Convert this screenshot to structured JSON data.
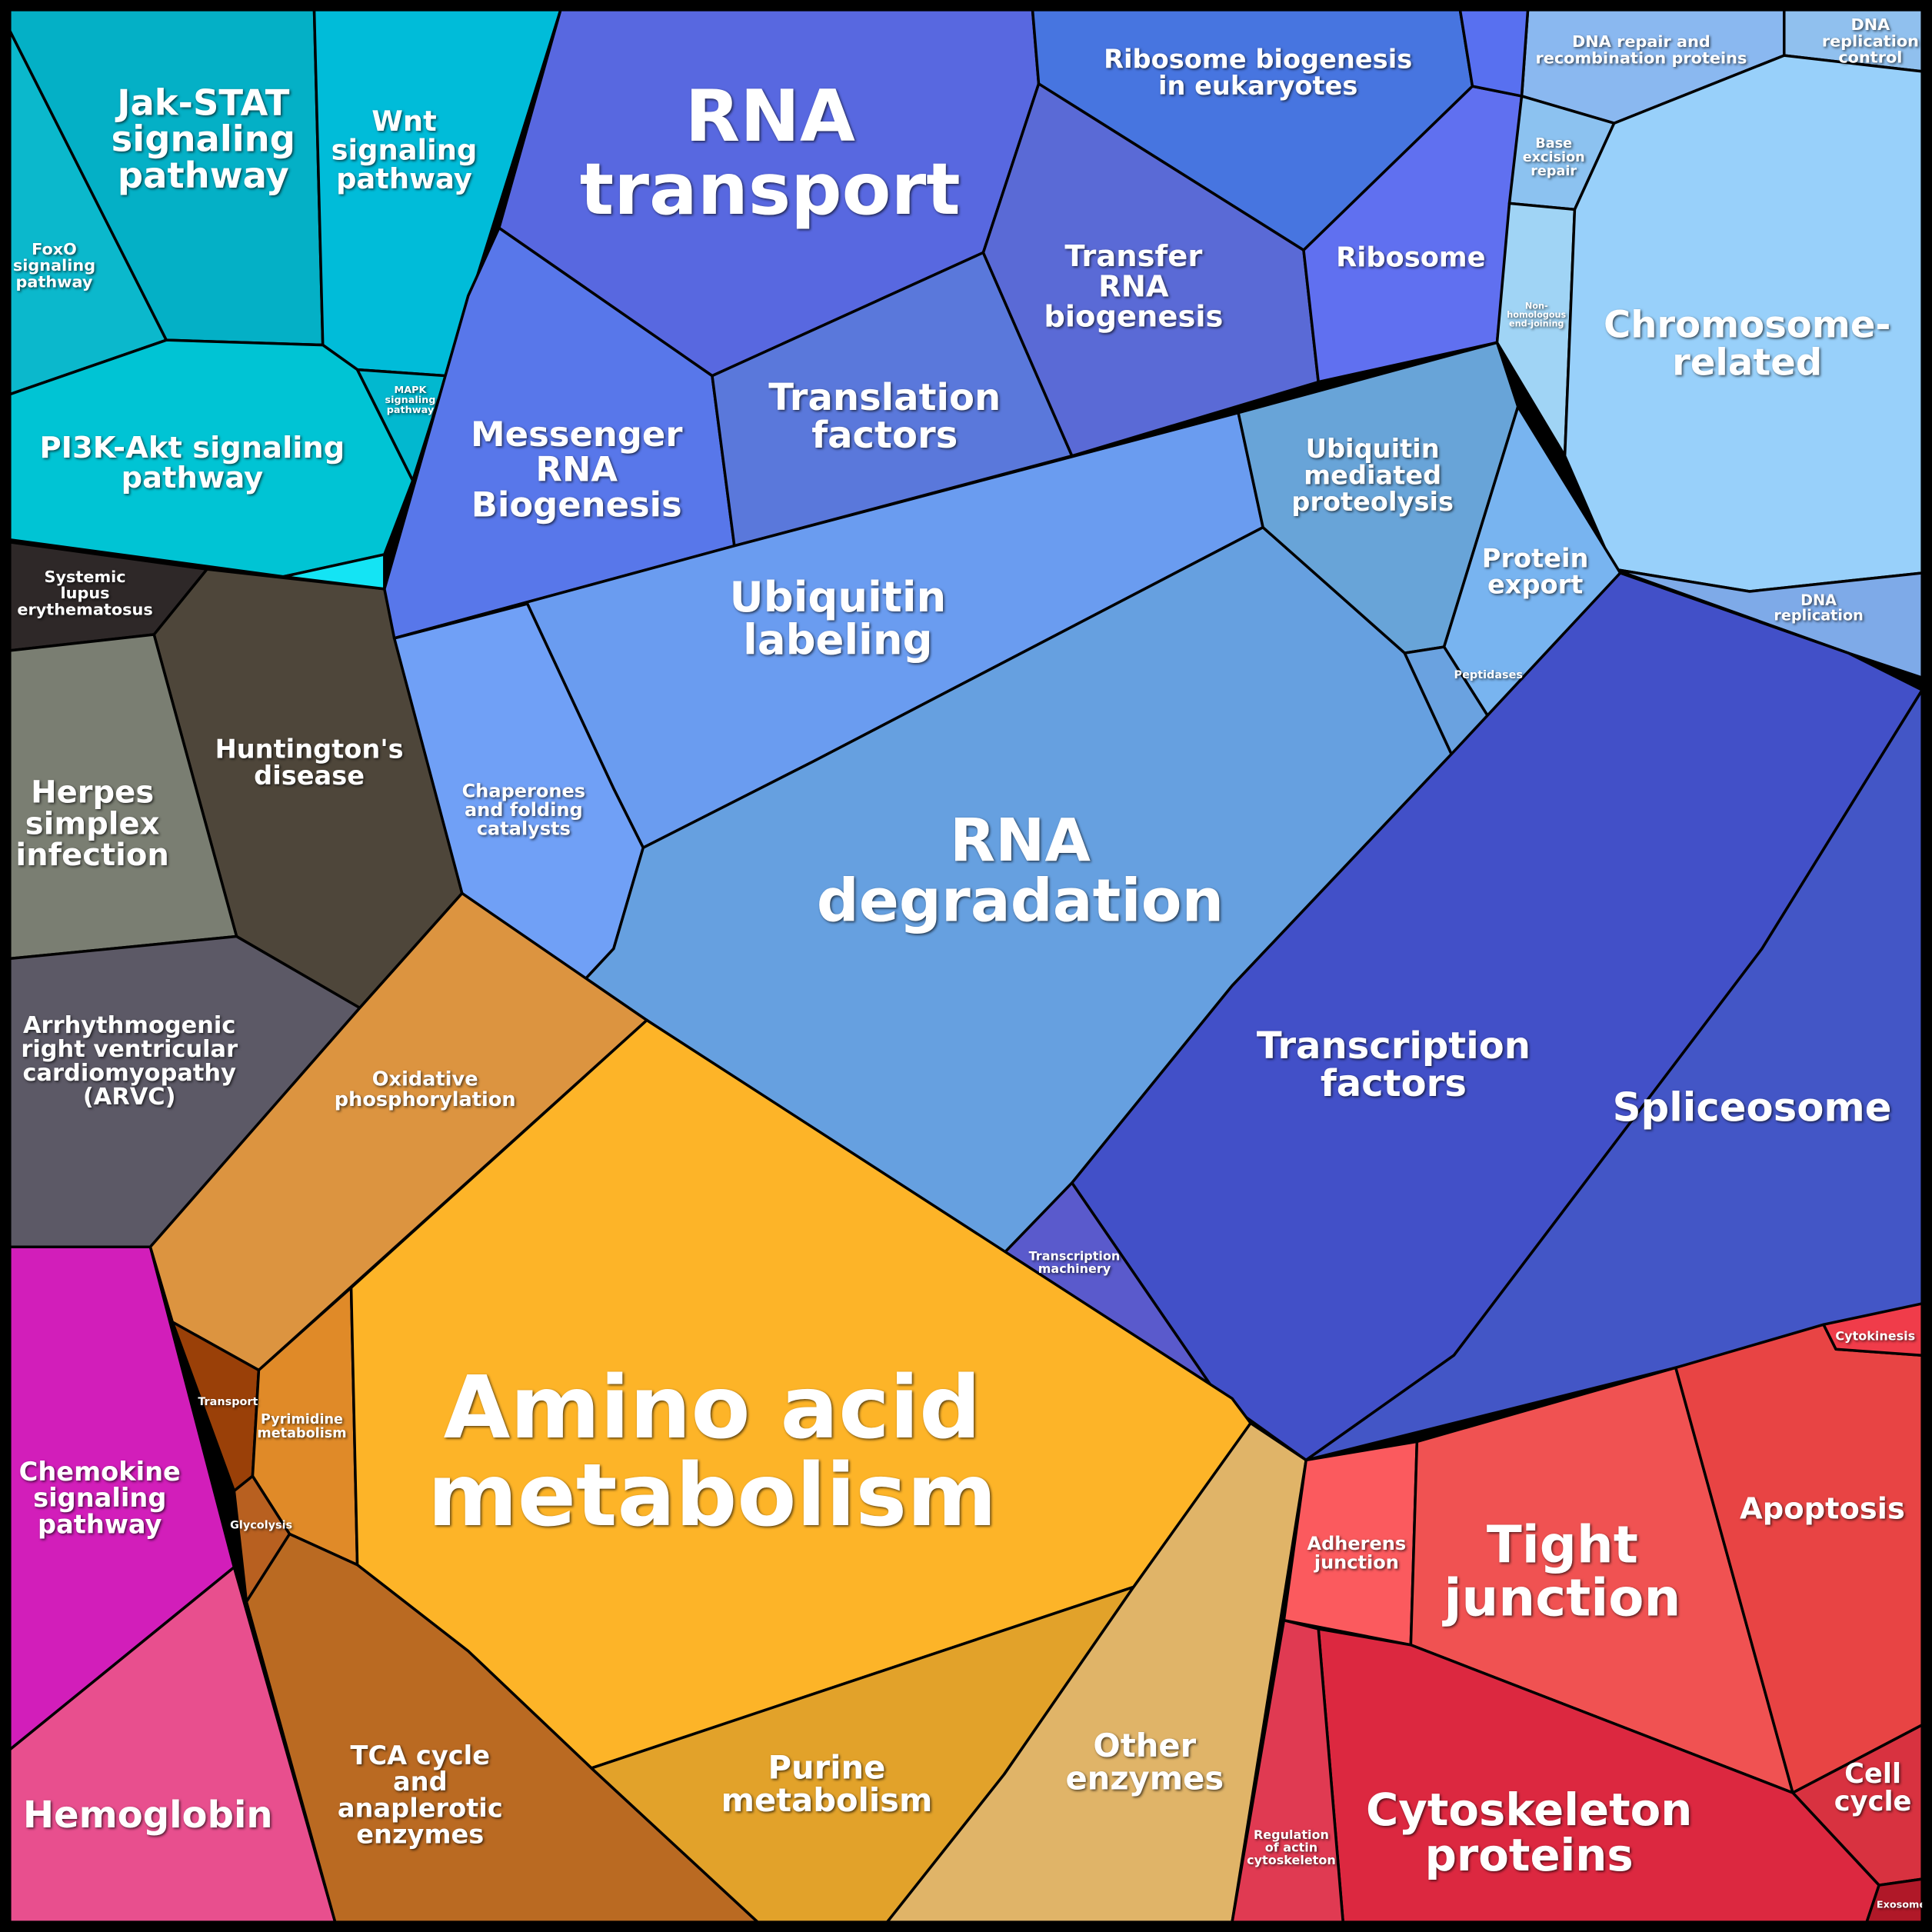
{
  "regions": [
    {
      "lines": [
        "FoxO",
        "signaling",
        "pathway"
      ],
      "color": "#0bb8cc"
    },
    {
      "lines": [
        "Jak-STAT",
        "signaling",
        "pathway"
      ],
      "color": "#04b0c6"
    },
    {
      "lines": [
        "Wnt",
        "signaling",
        "pathway"
      ],
      "color": "#00bcd9"
    },
    {
      "lines": [
        "PI3K-Akt signaling",
        "pathway"
      ],
      "color": "#00c4d4"
    },
    {
      "lines": [
        "MAPK",
        "signaling",
        "pathway"
      ],
      "color": "#02b8cf"
    },
    {
      "lines": [
        "Systemic",
        "lupus",
        "erythematosus"
      ],
      "color": "#2e2828"
    },
    {
      "lines": [
        "Huntington's",
        "disease"
      ],
      "color": "#4e463a"
    },
    {
      "lines": [
        "Herpes",
        "simplex",
        "infection"
      ],
      "color": "#7a7e72"
    },
    {
      "lines": [
        "Arrhythmogenic",
        "right ventricular",
        "cardiomyopathy",
        "(ARVC)"
      ],
      "color": "#5c5966"
    },
    {
      "lines": [
        "Chemokine",
        "signaling",
        "pathway"
      ],
      "color": "#d21eba"
    },
    {
      "lines": [
        "Hemoglobin"
      ],
      "color": "#e84f8e"
    },
    {
      "lines": [
        "RNA",
        "transport"
      ],
      "color": "#5868e0"
    },
    {
      "lines": [
        "Messenger",
        "RNA",
        "Biogenesis"
      ],
      "color": "#5877ea"
    },
    {
      "lines": [
        "Translation",
        "factors"
      ],
      "color": "#5a78db"
    },
    {
      "lines": [
        "Ribosome biogenesis",
        "in eukaryotes"
      ],
      "color": "#4775e0"
    },
    {
      "lines": [
        "Transfer",
        "RNA",
        "biogenesis"
      ],
      "color": "#5a6ad6"
    },
    {
      "lines": [
        "Ribosome"
      ],
      "color": "#6070f0"
    },
    {
      "lines": [
        "DNA repair and",
        "recombination proteins"
      ],
      "color": "#8ab8f0"
    },
    {
      "lines": [
        "DNA",
        "replication",
        "control"
      ],
      "color": "#90c0ee"
    },
    {
      "lines": [
        "Base",
        "excision",
        "repair"
      ],
      "color": "#8cc2f0"
    },
    {
      "lines": [
        "Non-",
        "homologous",
        "end-joining"
      ],
      "color": "#a0d4f5"
    },
    {
      "lines": [
        "Chromosome-",
        "related"
      ],
      "color": "#98d0fa"
    },
    {
      "lines": [
        "DNA",
        "replication"
      ],
      "color": "#7eaae8"
    },
    {
      "lines": [
        "Ubiquitin",
        "labeling"
      ],
      "color": "#6a9cf0"
    },
    {
      "lines": [
        "Chaperones",
        "and folding",
        "catalysts"
      ],
      "color": "#70a0f6"
    },
    {
      "lines": [
        "RNA",
        "degradation"
      ],
      "color": "#66a0e0"
    },
    {
      "lines": [
        "Ubiquitin",
        "mediated",
        "proteolysis"
      ],
      "color": "#68a4d8"
    },
    {
      "lines": [
        "Protein",
        "export"
      ],
      "color": "#78b4f0"
    },
    {
      "lines": [
        "Peptidases"
      ],
      "color": "#6aa2e0"
    },
    {
      "lines": [
        "Transcription",
        "factors"
      ],
      "color": "#4250c8"
    },
    {
      "lines": [
        "Spliceosome"
      ],
      "color": "#4356c6"
    },
    {
      "lines": [
        "Transcription",
        "machinery"
      ],
      "color": "#5a5acc"
    },
    {
      "lines": [
        "Oxidative",
        "phosphorylation"
      ],
      "color": "#dc9440"
    },
    {
      "lines": [
        "Transport"
      ],
      "color": "#9a4008"
    },
    {
      "lines": [
        "Pyrimidine",
        "metabolism"
      ],
      "color": "#e08a28"
    },
    {
      "lines": [
        "Glycolysis"
      ],
      "color": "#b86020"
    },
    {
      "lines": [
        "Amino acid",
        "metabolism"
      ],
      "color": "#fdb428"
    },
    {
      "lines": [
        "TCA cycle",
        "and",
        "anaplerotic",
        "enzymes"
      ],
      "color": "#ba6a22"
    },
    {
      "lines": [
        "Purine",
        "metabolism"
      ],
      "color": "#e2a22a"
    },
    {
      "lines": [
        "Other",
        "enzymes"
      ],
      "color": "#e0b468"
    },
    {
      "lines": [
        "Adherens",
        "junction"
      ],
      "color": "#fb5a5e"
    },
    {
      "lines": [
        "Tight",
        "junction"
      ],
      "color": "#f05252"
    },
    {
      "lines": [
        "Apoptosis"
      ],
      "color": "#e84444"
    },
    {
      "lines": [
        "Cytokinesis"
      ],
      "color": "#f03c4a"
    },
    {
      "lines": [
        "Cell",
        "cycle"
      ],
      "color": "#d83240"
    },
    {
      "lines": [
        "Cytoskeleton",
        "proteins"
      ],
      "color": "#dc2840"
    },
    {
      "lines": [
        "Regulation",
        "of actin",
        "cytoskeleton"
      ],
      "color": "#e03a52"
    },
    {
      "lines": [
        "Exosome"
      ],
      "color": "#b01828"
    },
    {
      "color": "#14e4f4"
    },
    {
      "color": "#5870f0"
    }
  ]
}
